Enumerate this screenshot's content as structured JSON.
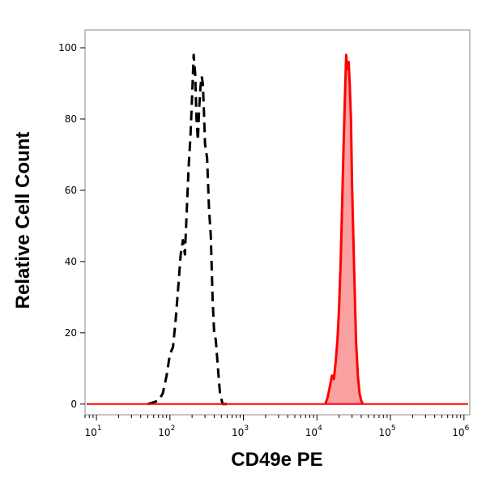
{
  "chart_data": {
    "type": "line",
    "title": "",
    "xlabel": "CD49e PE",
    "ylabel": "Relative Cell Count",
    "x_scale": "log10",
    "xlim": [
      7,
      1200000
    ],
    "ylim": [
      -3,
      105
    ],
    "grid": false,
    "legend": "none",
    "x_ticks": [
      {
        "base": "10",
        "exp": "1",
        "value": 10
      },
      {
        "base": "10",
        "exp": "2",
        "value": 100
      },
      {
        "base": "10",
        "exp": "3",
        "value": 1000
      },
      {
        "base": "10",
        "exp": "4",
        "value": 10000
      },
      {
        "base": "10",
        "exp": "5",
        "value": 100000
      },
      {
        "base": "10",
        "exp": "6",
        "value": 1000000
      }
    ],
    "y_ticks": [
      "0",
      "20",
      "40",
      "60",
      "80",
      "100"
    ],
    "series": [
      {
        "style": "dashed",
        "color": "#000000",
        "filled": false,
        "x": [
          50,
          60,
          70,
          80,
          90,
          100,
          110,
          120,
          130,
          140,
          150,
          160,
          170,
          180,
          190,
          200,
          210,
          220,
          230,
          240,
          250,
          260,
          270,
          280,
          290,
          300,
          320,
          340,
          360,
          380,
          400,
          420,
          450,
          480,
          520,
          600
        ],
        "y": [
          0,
          0.5,
          1,
          3,
          8,
          14,
          16,
          24,
          33,
          42,
          46,
          42,
          55,
          67,
          75,
          86,
          98,
          93,
          80,
          74,
          83,
          89,
          92,
          90,
          82,
          73,
          69,
          55,
          47,
          30,
          20,
          18,
          10,
          3,
          0,
          0
        ]
      },
      {
        "style": "solid",
        "color": "#ff0000",
        "fill": "#f9a0a0",
        "filled": true,
        "x": [
          13000,
          14000,
          15000,
          16000,
          17000,
          18000,
          19000,
          20000,
          21000,
          22000,
          23000,
          24000,
          25000,
          26000,
          27000,
          28000,
          29000,
          30000,
          32000,
          34000,
          36000,
          38000,
          40000,
          42000
        ],
        "y": [
          0,
          2,
          5,
          8,
          7,
          12,
          18,
          27,
          40,
          56,
          72,
          86,
          98,
          94,
          96,
          89,
          80,
          62,
          38,
          18,
          8,
          3,
          1,
          0
        ]
      }
    ]
  }
}
